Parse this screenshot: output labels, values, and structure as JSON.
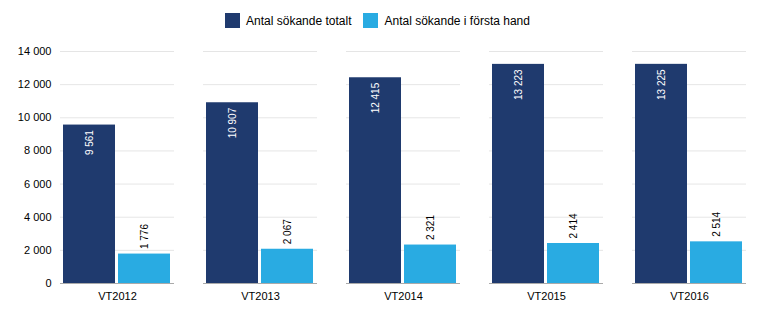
{
  "chart_data": {
    "type": "bar",
    "categories": [
      "VT2012",
      "VT2013",
      "VT2014",
      "VT2015",
      "VT2016"
    ],
    "series": [
      {
        "name": "Antal sökande totalt",
        "color": "#1F3A6E",
        "values": [
          9561,
          10907,
          12415,
          13223,
          13225
        ],
        "value_labels": [
          "9 561",
          "10 907",
          "12 415",
          "13 223",
          "13 225"
        ]
      },
      {
        "name": "Antal sökande i första hand",
        "color": "#29ABE2",
        "values": [
          1776,
          2067,
          2321,
          2414,
          2514
        ],
        "value_labels": [
          "1 776",
          "2 067",
          "2 321",
          "2 414",
          "2 514"
        ]
      }
    ],
    "ylim": [
      0,
      14000
    ],
    "yticks": [
      0,
      {
        "value": 2000,
        "label": "2 000"
      },
      {
        "value": 4000,
        "label": "4 000"
      },
      {
        "value": 6000,
        "label": "6 000"
      },
      {
        "value": 8000,
        "label": "8 000"
      },
      {
        "value": 10000,
        "label": "10 000"
      },
      {
        "value": 12000,
        "label": "12 000"
      },
      {
        "value": 14000,
        "label": "14 000"
      }
    ],
    "grid": true,
    "data_labels": true,
    "legend": "top"
  }
}
